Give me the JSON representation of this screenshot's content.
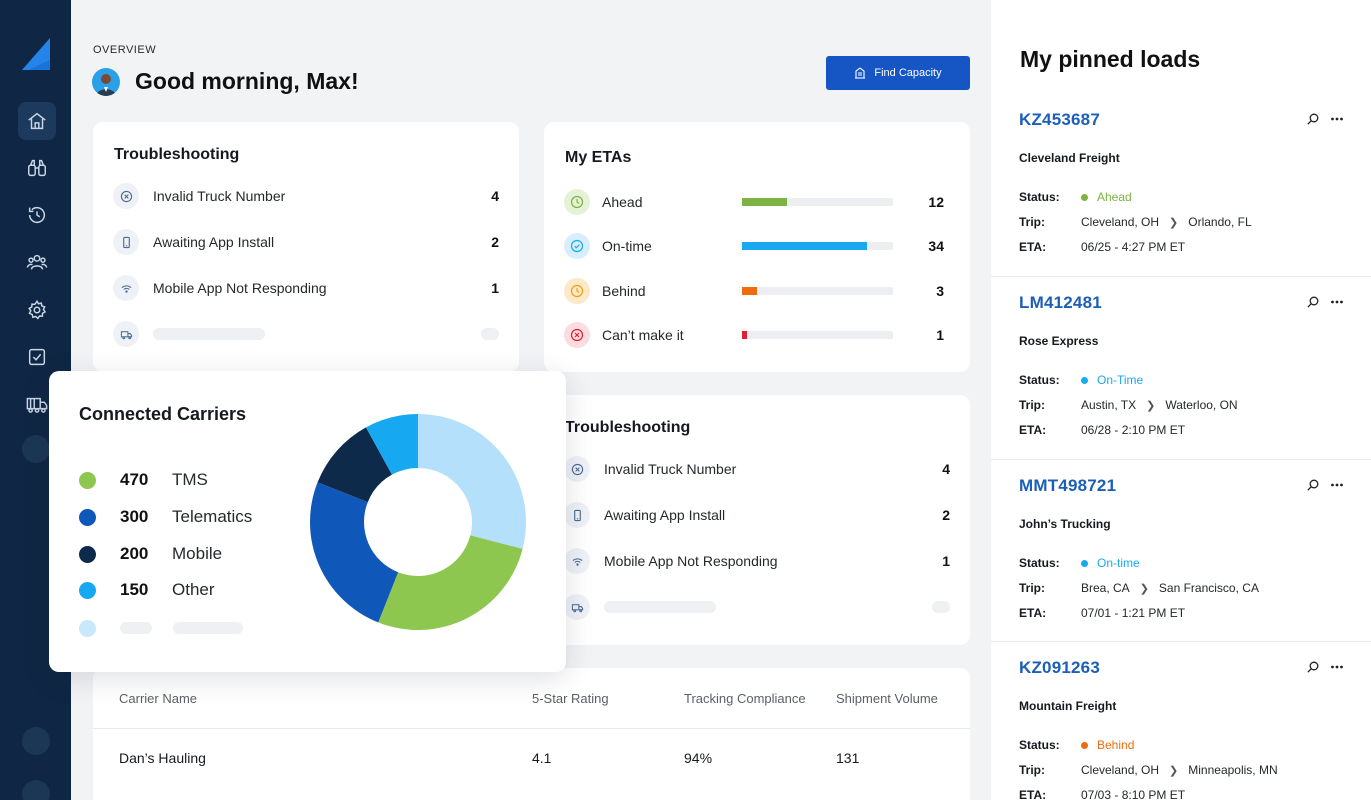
{
  "header": {
    "overview": "OVERVIEW",
    "greeting": "Good morning, Max!",
    "find_capacity": "Find Capacity"
  },
  "sidebar": {
    "items": [
      {
        "icon": "home-icon"
      },
      {
        "icon": "binoculars-icon"
      },
      {
        "icon": "history-icon"
      },
      {
        "icon": "users-icon"
      },
      {
        "icon": "settings-icon"
      },
      {
        "icon": "checkbox-icon"
      },
      {
        "icon": "truck-icon"
      }
    ]
  },
  "troubleshooting_top": {
    "title": "Troubleshooting",
    "items": [
      {
        "label": "Invalid Truck Number",
        "count": "4"
      },
      {
        "label": "Awaiting App Install",
        "count": "2"
      },
      {
        "label": "Mobile App Not Responding",
        "count": "1"
      }
    ]
  },
  "etas": {
    "title": "My ETAs",
    "items": [
      {
        "label": "Ahead",
        "count": "12",
        "fraction": 0.3,
        "color": "#7cb342",
        "bg": "#e5f2d6"
      },
      {
        "label": "On-time",
        "count": "34",
        "fraction": 0.83,
        "color": "#1aa8f0",
        "bg": "#d7eefc"
      },
      {
        "label": "Behind",
        "count": "3",
        "fraction": 0.1,
        "color": "#f06a0f",
        "bg": "#fde8c8"
      },
      {
        "label": "Can’t make it",
        "count": "1",
        "fraction": 0.03,
        "color": "#e01e2e",
        "bg": "#fcdcdf"
      }
    ]
  },
  "troubleshooting_bottom": {
    "title": "Troubleshooting",
    "items": [
      {
        "label": "Invalid Truck Number",
        "count": "4"
      },
      {
        "label": "Awaiting App Install",
        "count": "2"
      },
      {
        "label": "Mobile App Not Responding",
        "count": "1"
      }
    ]
  },
  "carriers": {
    "title": "Connected Carriers",
    "items": [
      {
        "value": "470",
        "name": "TMS",
        "color": "#8dc750"
      },
      {
        "value": "300",
        "name": "Telematics",
        "color": "#0f57b8"
      },
      {
        "value": "200",
        "name": "Mobile",
        "color": "#0e2a4a"
      },
      {
        "value": "150",
        "name": "Other",
        "color": "#16a9f2"
      }
    ],
    "chart_data": {
      "type": "pie",
      "categories": [
        "Light blue",
        "TMS",
        "Telematics",
        "Mobile",
        "Other"
      ],
      "values": [
        29,
        27,
        25,
        11,
        8
      ],
      "colors": [
        "#b5e0fb",
        "#8dc750",
        "#0f57b8",
        "#0e2a4a",
        "#16a9f2"
      ]
    }
  },
  "table": {
    "headers": [
      "Carrier Name",
      "5-Star Rating",
      "Tracking Compliance",
      "Shipment Volume"
    ],
    "rows": [
      [
        "Dan’s Hauling",
        "4.1",
        "94%",
        "131"
      ]
    ]
  },
  "pinned": {
    "title": "My pinned loads",
    "labels": {
      "status": "Status:",
      "trip": "Trip:",
      "eta": "ETA:"
    },
    "loads": [
      {
        "id": "KZ453687",
        "carrier": "Cleveland Freight",
        "status": "Ahead",
        "status_color": "#7cb342",
        "from": "Cleveland, OH",
        "to": "Orlando, FL",
        "eta": "06/25 - 4:27 PM ET"
      },
      {
        "id": "LM412481",
        "carrier": "Rose Express",
        "status": "On-Time",
        "status_color": "#1aa8f0",
        "from": "Austin, TX",
        "to": "Waterloo, ON",
        "eta": "06/28 - 2:10 PM ET"
      },
      {
        "id": "MMT498721",
        "carrier": "John’s Trucking",
        "status": "On-time",
        "status_color": "#1aa8f0",
        "from": "Brea, CA",
        "to": "San Francisco, CA",
        "eta": "07/01 - 1:21 PM ET"
      },
      {
        "id": "KZ091263",
        "carrier": "Mountain Freight",
        "status": "Behind",
        "status_color": "#f06a0f",
        "from": "Cleveland, OH",
        "to": "Minneapolis, MN",
        "eta": "07/03 - 8:10 PM ET"
      }
    ]
  }
}
